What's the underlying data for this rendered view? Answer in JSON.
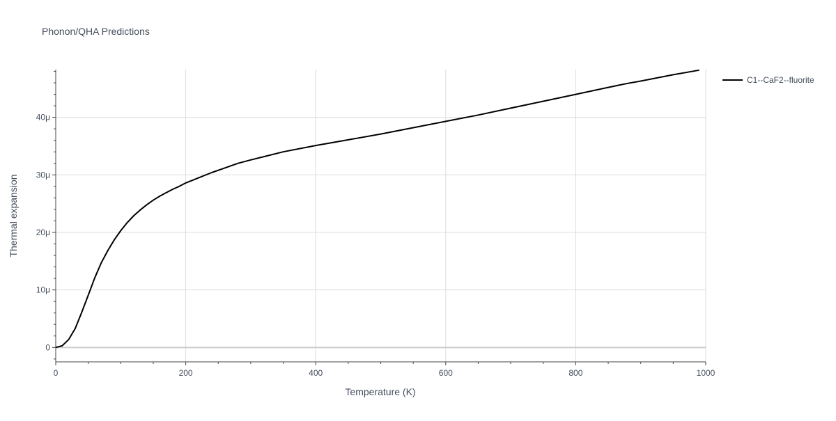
{
  "chart_data": {
    "type": "line",
    "title": "Phonon/QHA Predictions",
    "xlabel": "Temperature (K)",
    "ylabel": "Thermal expansion",
    "xlim": [
      0,
      1000
    ],
    "ylim": [
      -2.5e-06,
      4.83e-05
    ],
    "grid": true,
    "legend_position": "top-right",
    "x_ticks": [
      {
        "value": 0,
        "label": "0"
      },
      {
        "value": 200,
        "label": "200"
      },
      {
        "value": 400,
        "label": "400"
      },
      {
        "value": 600,
        "label": "600"
      },
      {
        "value": 800,
        "label": "800"
      },
      {
        "value": 1000,
        "label": "1000"
      }
    ],
    "y_ticks": [
      {
        "value": 0,
        "label": "0"
      },
      {
        "value": 1e-05,
        "label": "10μ"
      },
      {
        "value": 2e-05,
        "label": "20μ"
      },
      {
        "value": 3e-05,
        "label": "30μ"
      },
      {
        "value": 4e-05,
        "label": "40μ"
      }
    ],
    "series": [
      {
        "name": "C1--CaF2--fluorite",
        "color": "#000000",
        "x": [
          0,
          10,
          20,
          30,
          40,
          50,
          60,
          70,
          80,
          90,
          100,
          110,
          120,
          130,
          140,
          150,
          160,
          170,
          180,
          190,
          200,
          220,
          240,
          260,
          280,
          300,
          350,
          400,
          450,
          500,
          550,
          600,
          650,
          700,
          750,
          800,
          850,
          880,
          900,
          950,
          990
        ],
        "y": [
          0,
          3e-07,
          1.4e-06,
          3.3e-06,
          6.1e-06,
          9.1e-06,
          1.21e-05,
          1.47e-05,
          1.68e-05,
          1.87e-05,
          2.03e-05,
          2.17e-05,
          2.29e-05,
          2.39e-05,
          2.48e-05,
          2.56e-05,
          2.63e-05,
          2.69e-05,
          2.75e-05,
          2.8e-05,
          2.86e-05,
          2.95e-05,
          3.04e-05,
          3.12e-05,
          3.2e-05,
          3.26e-05,
          3.4e-05,
          3.51e-05,
          3.61e-05,
          3.71e-05,
          3.82e-05,
          3.93e-05,
          4.04e-05,
          4.16e-05,
          4.28e-05,
          4.4e-05,
          4.52e-05,
          4.59e-05,
          4.63e-05,
          4.74e-05,
          4.82e-05
        ]
      }
    ]
  },
  "colors": {
    "grid": "#dddddd",
    "zero_line": "#cccccc",
    "axis": "#444444",
    "text": "#444c5c"
  }
}
